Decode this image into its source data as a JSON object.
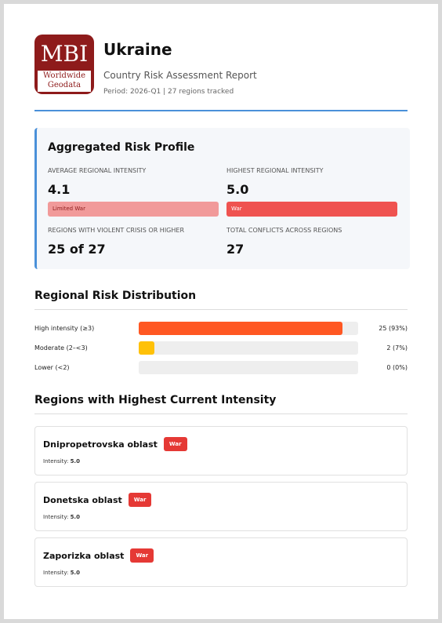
{
  "header": {
    "logo": {
      "main": "MBI",
      "sub1": "Worldwide",
      "sub2": "Geodata"
    },
    "title": "Ukraine",
    "subtitle": "Country Risk Assessment Report",
    "meta": "Period: 2026-Q1 | 27 regions tracked"
  },
  "profile": {
    "title": "Aggregated Risk Profile",
    "stats": [
      {
        "label": "AVERAGE REGIONAL INTENSITY",
        "value": "4.1",
        "tag": "Limited War"
      },
      {
        "label": "HIGHEST REGIONAL INTENSITY",
        "value": "5.0",
        "tag": "War"
      },
      {
        "label": "REGIONS WITH VIOLENT CRISIS OR HIGHER",
        "value": "25 of 27"
      },
      {
        "label": "TOTAL CONFLICTS ACROSS REGIONS",
        "value": "27"
      }
    ]
  },
  "distribution": {
    "title": "Regional Risk Distribution",
    "rows": [
      {
        "name": "High intensity (≥3)",
        "percent": 93,
        "label": "25 (93%)",
        "color": "#ff5722"
      },
      {
        "name": "Moderate (2–<3)",
        "percent": 7,
        "label": "2 (7%)",
        "color": "#ffc107"
      },
      {
        "name": "Lower (<2)",
        "percent": 0,
        "label": "0 (0%)",
        "color": "#4caf50"
      }
    ]
  },
  "regions": {
    "title": "Regions with Highest Current Intensity",
    "intensity_label": "Intensity:",
    "items": [
      {
        "name": "Dnipropetrovska oblast",
        "tag": "War",
        "intensity": "5.0"
      },
      {
        "name": "Donetska oblast",
        "tag": "War",
        "intensity": "5.0"
      },
      {
        "name": "Zaporizka oblast",
        "tag": "War",
        "intensity": "5.0"
      }
    ]
  }
}
